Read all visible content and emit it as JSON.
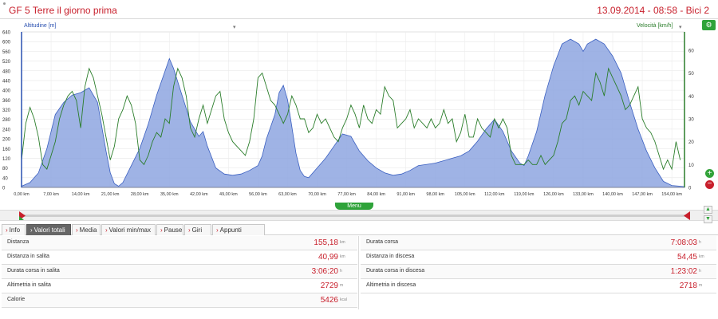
{
  "header": {
    "title": "GF 5 Terre il giorno prima",
    "date": "13.09.2014 - 08:58 - Bici 2"
  },
  "chart_selectors": {
    "left": "Altitudine [m]",
    "right": "Velocità [km/h]"
  },
  "menu_label": "Menu",
  "tabs": [
    {
      "label": "Info",
      "active": false
    },
    {
      "label": "Valori totali",
      "active": true
    },
    {
      "label": "Media",
      "active": false
    },
    {
      "label": "Valori min/max",
      "active": false
    },
    {
      "label": "Pause",
      "active": false
    },
    {
      "label": "Giri",
      "active": false
    },
    {
      "label": "Appunti",
      "active": false
    }
  ],
  "stats_left": [
    {
      "label": "Distanza",
      "value": "155,18",
      "unit": "km"
    },
    {
      "label": "Distanza in salita",
      "value": "40,99",
      "unit": "km"
    },
    {
      "label": "Durata corsa in salita",
      "value": "3:06:20",
      "unit": "h"
    },
    {
      "label": "Altimetria in salita",
      "value": "2729",
      "unit": "m"
    },
    {
      "label": "Calorie",
      "value": "5426",
      "unit": "kcal"
    }
  ],
  "stats_right": [
    {
      "label": "Durata corsa",
      "value": "7:08:03",
      "unit": "h"
    },
    {
      "label": "Distanza in discesa",
      "value": "54,45",
      "unit": "km"
    },
    {
      "label": "Durata corsa in discesa",
      "value": "1:23:02",
      "unit": "h"
    },
    {
      "label": "Altimetria in discesa",
      "value": "2718",
      "unit": "m"
    }
  ],
  "colors": {
    "accent": "#c8202c",
    "altitude_fill": "#8ea6e0",
    "altitude_line": "#3a5fc0",
    "speed_line": "#2a7d2a",
    "green_button": "#2fa33a"
  },
  "chart_data": {
    "type": "area",
    "xlabel": "",
    "ylabel": "Altitudine [m]",
    "y2label": "Velocità [km/h]",
    "xlim": [
      0,
      157
    ],
    "ylim": [
      0,
      640
    ],
    "y2lim": [
      0,
      68
    ],
    "x_ticks": [
      "0,00 km",
      "7,00 km",
      "14,00 km",
      "21,00 km",
      "28,00 km",
      "35,00 km",
      "42,00 km",
      "49,00 km",
      "56,00 km",
      "63,00 km",
      "70,00 km",
      "77,00 km",
      "84,00 km",
      "91,00 km",
      "98,00 km",
      "105,00 km",
      "112,00 km",
      "119,00 km",
      "126,00 km",
      "133,00 km",
      "140,00 km",
      "147,00 km",
      "154,00 km"
    ],
    "y_ticks": [
      0,
      40,
      80,
      120,
      160,
      200,
      240,
      280,
      320,
      360,
      400,
      440,
      480,
      520,
      560,
      600,
      640
    ],
    "y2_ticks": [
      0,
      10,
      20,
      30,
      40,
      50,
      60
    ],
    "grid": true,
    "series": [
      {
        "name": "Altitudine [m]",
        "axis": "left",
        "x": [
          0,
          2,
          4,
          6,
          8,
          10,
          12,
          14,
          16,
          18,
          19,
          20,
          21,
          22,
          23,
          24,
          26,
          28,
          30,
          32,
          34,
          35,
          36,
          38,
          40,
          42,
          43,
          44,
          46,
          48,
          50,
          52,
          54,
          56,
          57,
          58,
          60,
          61,
          62,
          63,
          64,
          65,
          66,
          67,
          68,
          70,
          72,
          74,
          76,
          78,
          80,
          82,
          84,
          86,
          88,
          90,
          92,
          94,
          96,
          98,
          100,
          102,
          104,
          106,
          108,
          110,
          112,
          114,
          116,
          118,
          119,
          120,
          122,
          124,
          126,
          128,
          130,
          132,
          133,
          134,
          136,
          138,
          140,
          142,
          144,
          146,
          148,
          150,
          152,
          154,
          156,
          157
        ],
        "values": [
          5,
          20,
          60,
          160,
          300,
          350,
          380,
          390,
          410,
          350,
          250,
          150,
          60,
          15,
          5,
          20,
          90,
          160,
          260,
          380,
          480,
          530,
          490,
          380,
          270,
          210,
          230,
          170,
          80,
          55,
          50,
          55,
          70,
          90,
          130,
          200,
          300,
          390,
          420,
          360,
          250,
          140,
          70,
          45,
          40,
          80,
          120,
          170,
          220,
          210,
          150,
          110,
          80,
          60,
          50,
          55,
          70,
          90,
          95,
          100,
          110,
          120,
          130,
          150,
          190,
          240,
          280,
          230,
          150,
          100,
          90,
          130,
          230,
          380,
          500,
          590,
          610,
          590,
          560,
          590,
          610,
          590,
          540,
          470,
          350,
          240,
          150,
          80,
          25,
          8,
          5,
          3
        ]
      },
      {
        "name": "Velocità [km/h]",
        "axis": "right",
        "x": [
          0,
          1,
          2,
          3,
          4,
          5,
          6,
          7,
          8,
          9,
          10,
          11,
          12,
          13,
          14,
          15,
          16,
          17,
          18,
          19,
          20,
          21,
          22,
          23,
          24,
          25,
          26,
          27,
          28,
          29,
          30,
          31,
          32,
          33,
          34,
          35,
          36,
          37,
          38,
          39,
          40,
          41,
          42,
          43,
          44,
          45,
          46,
          47,
          48,
          49,
          50,
          51,
          52,
          53,
          54,
          55,
          56,
          57,
          58,
          59,
          60,
          61,
          62,
          63,
          64,
          65,
          66,
          67,
          68,
          69,
          70,
          71,
          72,
          73,
          74,
          75,
          76,
          77,
          78,
          79,
          80,
          81,
          82,
          83,
          84,
          85,
          86,
          87,
          88,
          89,
          90,
          91,
          92,
          93,
          94,
          95,
          96,
          97,
          98,
          99,
          100,
          101,
          102,
          103,
          104,
          105,
          106,
          107,
          108,
          109,
          110,
          111,
          112,
          113,
          114,
          115,
          116,
          117,
          118,
          119,
          120,
          121,
          122,
          123,
          124,
          125,
          126,
          127,
          128,
          129,
          130,
          131,
          132,
          133,
          134,
          135,
          136,
          137,
          138,
          139,
          140,
          141,
          142,
          143,
          144,
          145,
          146,
          147,
          148,
          149,
          150,
          151,
          152,
          153,
          154,
          155,
          156
        ],
        "values": [
          12,
          28,
          35,
          30,
          22,
          10,
          8,
          14,
          20,
          30,
          36,
          40,
          42,
          38,
          26,
          44,
          52,
          48,
          40,
          32,
          22,
          12,
          18,
          30,
          34,
          40,
          36,
          28,
          12,
          10,
          14,
          20,
          24,
          22,
          30,
          28,
          44,
          52,
          48,
          40,
          26,
          22,
          30,
          36,
          28,
          34,
          40,
          42,
          30,
          24,
          20,
          18,
          16,
          14,
          20,
          30,
          48,
          50,
          44,
          38,
          36,
          32,
          28,
          32,
          40,
          36,
          30,
          30,
          24,
          26,
          32,
          28,
          30,
          26,
          22,
          20,
          26,
          30,
          36,
          32,
          26,
          36,
          30,
          28,
          34,
          32,
          44,
          40,
          38,
          26,
          28,
          30,
          34,
          26,
          30,
          28,
          26,
          30,
          26,
          28,
          34,
          28,
          30,
          20,
          24,
          32,
          22,
          22,
          30,
          26,
          24,
          22,
          30,
          26,
          30,
          26,
          14,
          10,
          10,
          10,
          12,
          10,
          10,
          14,
          10,
          12,
          14,
          20,
          28,
          30,
          38,
          40,
          36,
          42,
          40,
          38,
          50,
          46,
          40,
          52,
          48,
          44,
          40,
          34,
          36,
          40,
          44,
          30,
          26,
          24,
          20,
          14,
          8,
          12,
          8,
          20,
          12
        ]
      }
    ]
  }
}
